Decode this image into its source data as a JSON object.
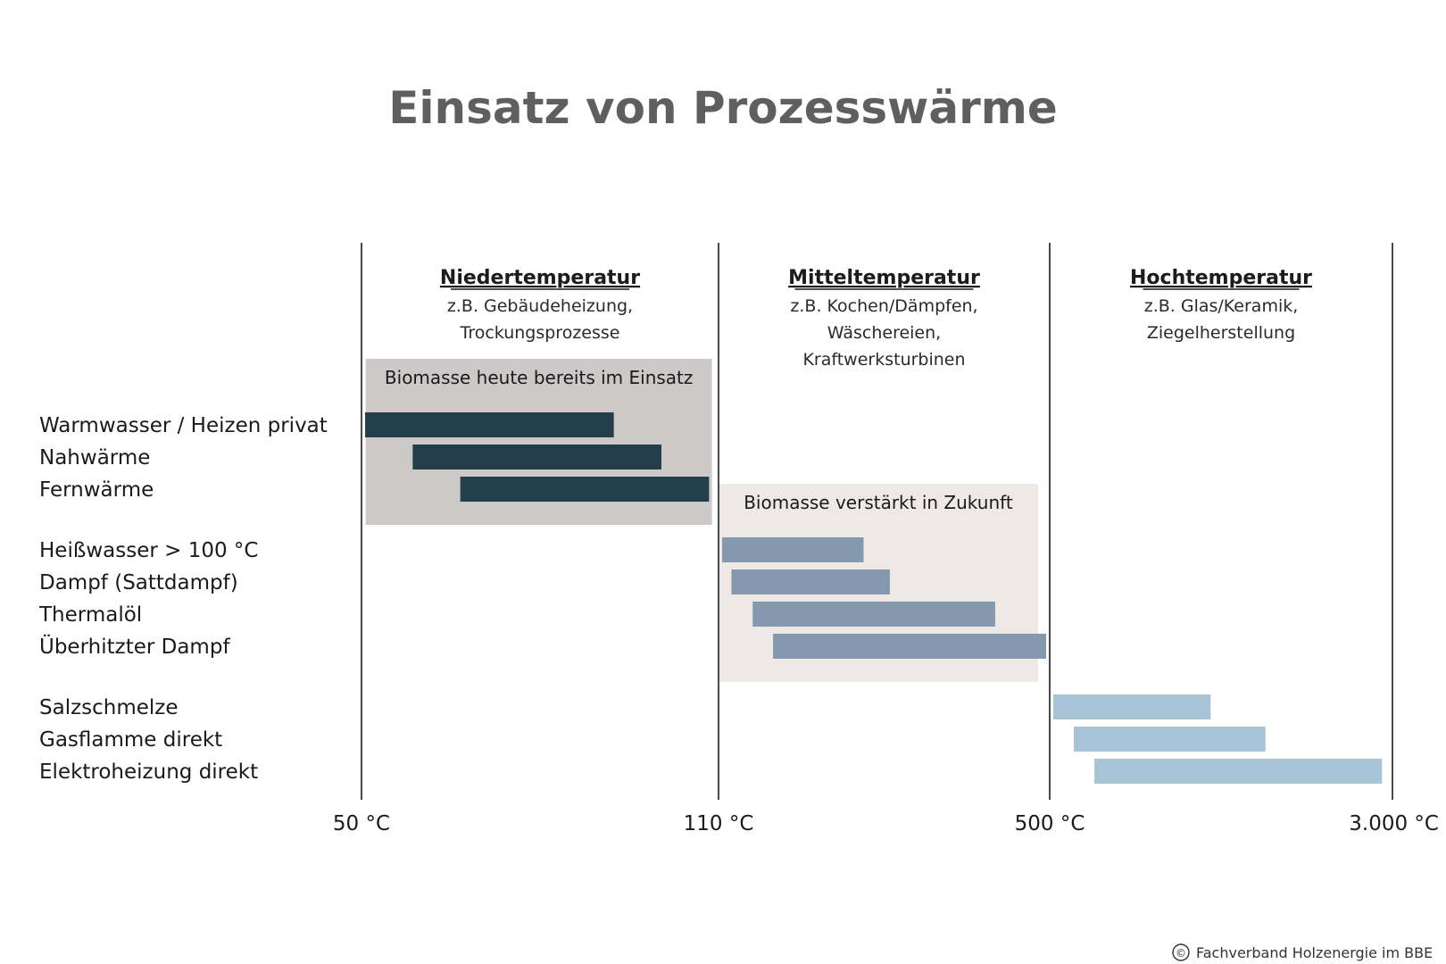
{
  "colors": {
    "title": "#5f5f5f",
    "divider": "#4a4a4a",
    "dark": "#243f4a",
    "mid": "#8499ae",
    "light": "#a9c3d6",
    "highlight_now": "#cdc9c9",
    "highlight_future": "#eee9e6"
  },
  "chart_data": {
    "type": "gantt-range",
    "title": "Einsatz von Prozesswärme",
    "axis": {
      "ticks": [
        {
          "value": 50,
          "label": "50 °C"
        },
        {
          "value": 110,
          "label": "110 °C"
        },
        {
          "value": 500,
          "label": "500 °C"
        },
        {
          "value": 3000,
          "label": "3.000 °C"
        }
      ]
    },
    "zones": [
      {
        "title": "Niedertemperatur",
        "lines": [
          "z.B. Gebäudeheizung,",
          "Trockungsprozesse"
        ],
        "range": [
          50,
          110
        ]
      },
      {
        "title": "Mitteltemperatur",
        "lines": [
          "z.B. Kochen/Dämpfen,",
          "Wäschereien,",
          "Kraftwerksturbinen"
        ],
        "range": [
          110,
          500
        ]
      },
      {
        "title": "Hochtemperatur",
        "lines": [
          "z.B. Glas/Keramik,",
          "Ziegelherstellung"
        ],
        "range": [
          500,
          3000
        ]
      }
    ],
    "highlights": [
      {
        "label": "Biomasse heute bereits im Einsatz",
        "range": [
          51,
          108
        ],
        "rows": [
          0,
          2
        ],
        "color": "highlight_now"
      },
      {
        "label": "Biomasse verstärkt in Zukunft",
        "range": [
          112,
          480
        ],
        "rows": [
          3,
          6
        ],
        "color": "highlight_future"
      }
    ],
    "groups": [
      {
        "color": "dark",
        "rows": [
          {
            "label": "Warmwasser / Heizen privat",
            "start": 50,
            "end": 93
          },
          {
            "label": "Nahwärme",
            "start": 58,
            "end": 101
          },
          {
            "label": "Fernwärme",
            "start": 66,
            "end": 109
          }
        ]
      },
      {
        "color": "mid",
        "rows": [
          {
            "label": "Heißwasser > 100 °C",
            "start": 110,
            "end": 285
          },
          {
            "label": "Dampf (Sattdampf)",
            "start": 121,
            "end": 316
          },
          {
            "label": "Thermalöl",
            "start": 146,
            "end": 440
          },
          {
            "label": "Überhitzter Dampf",
            "start": 170,
            "end": 500
          }
        ]
      },
      {
        "color": "light",
        "rows": [
          {
            "label": "Salzschmelze",
            "start": 500,
            "end": 1700
          },
          {
            "label": "Gasflamme direkt",
            "start": 650,
            "end": 2100
          },
          {
            "label": "Elektroheizung direkt",
            "start": 800,
            "end": 2950
          }
        ]
      }
    ]
  },
  "footer": {
    "copyright_symbol": "©",
    "credit": "Fachverband Holzenergie im BBE"
  }
}
